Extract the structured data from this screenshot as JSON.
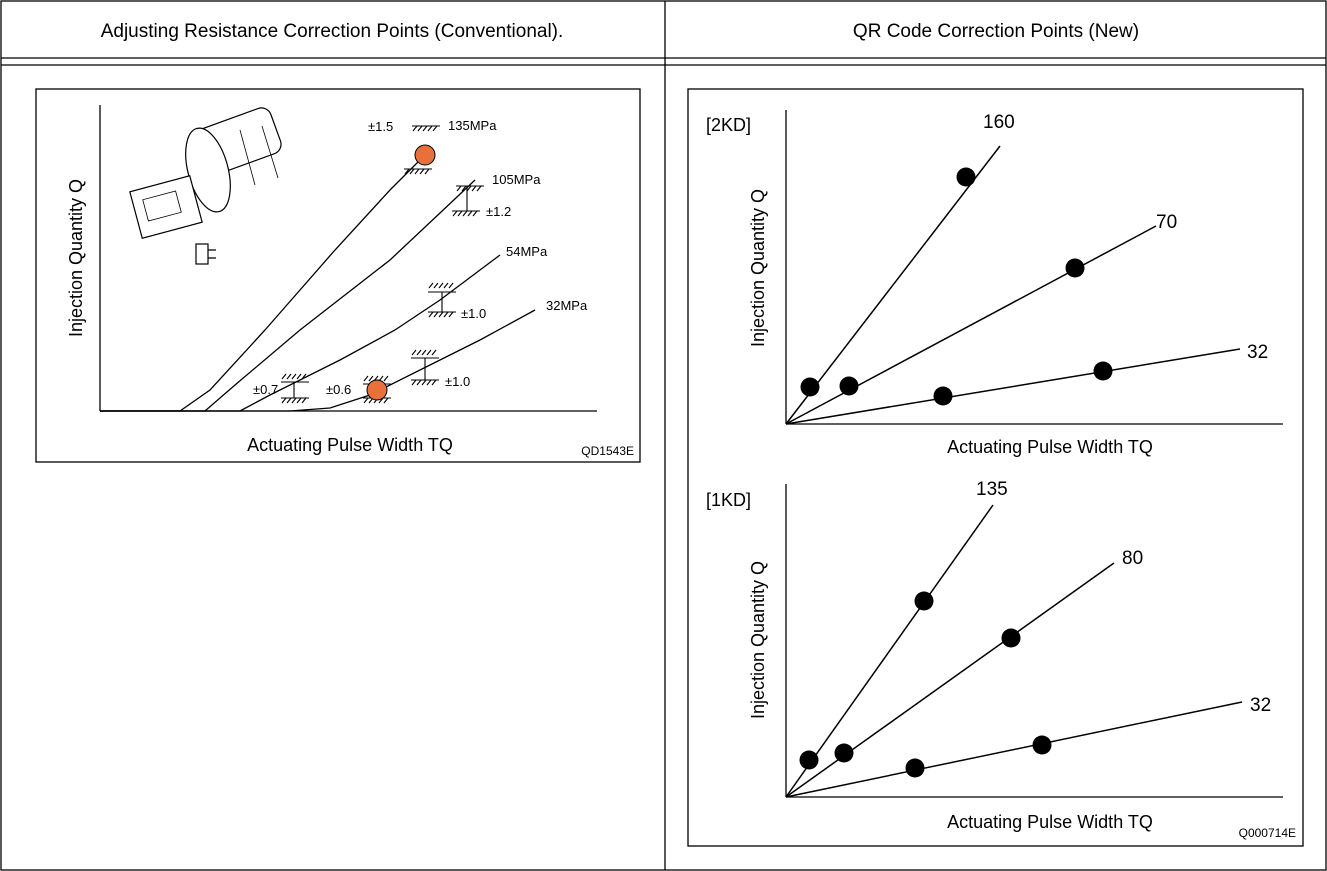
{
  "table": {
    "left_header": "Adjusting Resistance Correction Points (Conventional).",
    "right_header": "QR Code Correction Points (New)"
  },
  "conventional": {
    "y_axis_label": "Injection Quantity Q",
    "x_axis_label": "Actuating Pulse Width TQ",
    "figure_code": "QD1543E",
    "pressures": [
      "135MPa",
      "105MPa",
      "54MPa",
      "32MPa"
    ],
    "tolerances": [
      "±1.5",
      "±1.2",
      "±1.0",
      "±1.0",
      "±0.7",
      "±0.6"
    ],
    "highlight_color": "#e8703a"
  },
  "qr": {
    "figure_code": "Q000714E",
    "panels": [
      {
        "engine": "[2KD]",
        "y_axis_label": "Injection Quantity Q",
        "x_axis_label": "Actuating Pulse Width TQ",
        "series": [
          {
            "name": "160",
            "points": 2
          },
          {
            "name": "70",
            "points": 2
          },
          {
            "name": "32",
            "points": 2
          }
        ]
      },
      {
        "engine": "[1KD]",
        "y_axis_label": "Injection Quantity Q",
        "x_axis_label": "Actuating Pulse Width TQ",
        "series": [
          {
            "name": "135",
            "points": 2
          },
          {
            "name": "80",
            "points": 2
          },
          {
            "name": "32",
            "points": 2
          }
        ]
      }
    ]
  }
}
